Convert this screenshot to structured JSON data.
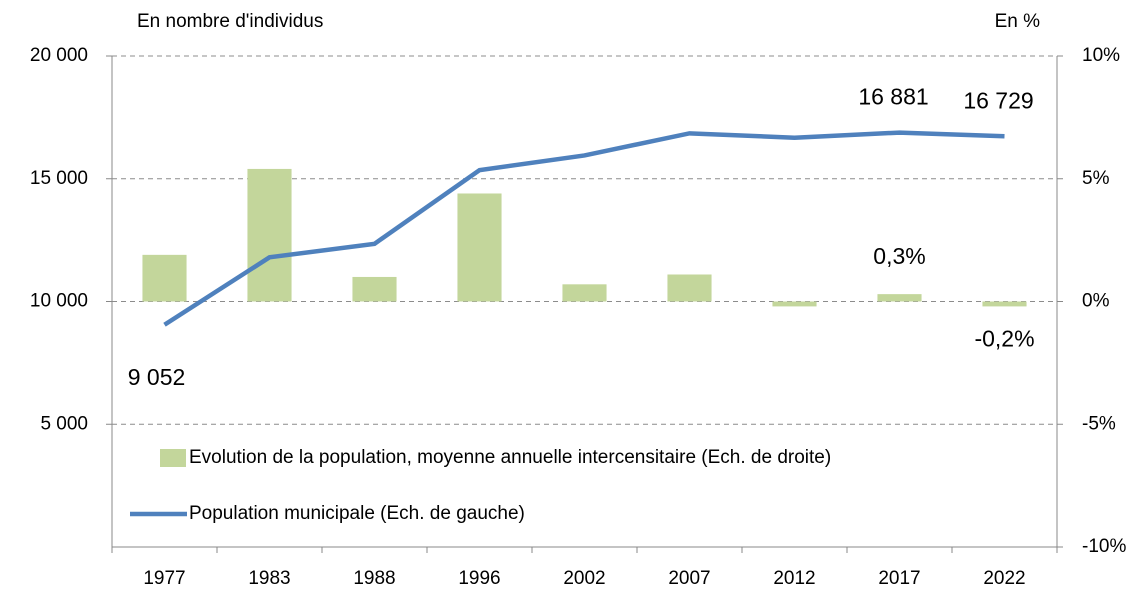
{
  "chart_data": {
    "type": "combo",
    "y_axis_label": "En nombre d'individus",
    "y2_axis_label": "En %",
    "categories": [
      "1977",
      "1983",
      "1988",
      "1996",
      "2002",
      "2007",
      "2012",
      "2017",
      "2022"
    ],
    "series": [
      {
        "name": "Evolution de la population, moyenne annuelle intercensitaire (Ech. de droite)",
        "type": "bar",
        "axis": "y2",
        "color": "#c3d69b",
        "values": [
          1.9,
          5.4,
          1.0,
          4.4,
          0.7,
          1.1,
          -0.2,
          0.3,
          -0.2
        ],
        "value_labels": [
          null,
          null,
          null,
          null,
          null,
          null,
          null,
          "0,3%",
          "-0,2%"
        ]
      },
      {
        "name": "Population municipale  (Ech. de gauche)",
        "type": "line",
        "axis": "y",
        "color": "#4f81bd",
        "values": [
          9052,
          11800,
          12350,
          15350,
          15950,
          16850,
          16670,
          16881,
          16729
        ],
        "value_labels": [
          "9 052",
          null,
          null,
          null,
          null,
          null,
          null,
          "16 881",
          "16 729"
        ]
      }
    ],
    "ylim": [
      0,
      20000
    ],
    "yticks": [
      {
        "value": 5000,
        "label": "5 000"
      },
      {
        "value": 10000,
        "label": "10 000"
      },
      {
        "value": 15000,
        "label": "15 000"
      },
      {
        "value": 20000,
        "label": "20 000"
      }
    ],
    "y2lim": [
      -10,
      10
    ],
    "y2ticks": [
      {
        "value": -10,
        "label": "-10%"
      },
      {
        "value": -5,
        "label": "-5%"
      },
      {
        "value": 0,
        "label": "0%"
      },
      {
        "value": 5,
        "label": "5%"
      },
      {
        "value": 10,
        "label": "10%"
      }
    ],
    "grid": true
  }
}
